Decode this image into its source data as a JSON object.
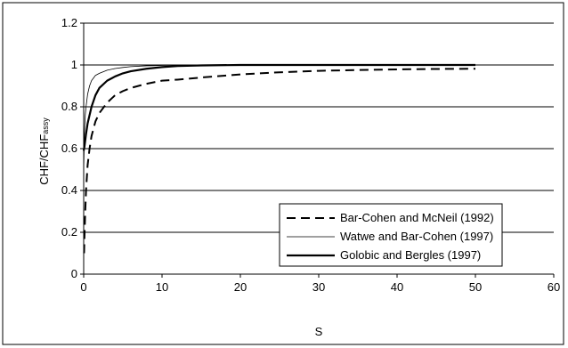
{
  "chart_data": {
    "type": "line",
    "xlabel": "S",
    "ylabel_main": "CHF/CHF",
    "ylabel_sub": "assy",
    "xlim": [
      0,
      60
    ],
    "ylim": [
      0,
      1.2
    ],
    "x_ticks": [
      0,
      10,
      20,
      30,
      40,
      50,
      60
    ],
    "y_ticks": [
      0,
      0.2,
      0.4,
      0.6,
      0.8,
      1,
      1.2
    ],
    "x_tick_labels": [
      "0",
      "10",
      "20",
      "30",
      "40",
      "50",
      "60"
    ],
    "y_tick_labels": [
      "0",
      "0.2",
      "0.4",
      "0.6",
      "0.8",
      "1",
      "1.2"
    ],
    "grid": "horizontal",
    "legend_position": "bottom-right",
    "series": [
      {
        "name": "Bar-Cohen and McNeil (1992)",
        "style": "dashed",
        "x": [
          0.05,
          0.1,
          0.2,
          0.3,
          0.5,
          0.75,
          1,
          1.5,
          2,
          3,
          4,
          5,
          6,
          8,
          10,
          12,
          15,
          20,
          25,
          30,
          35,
          40,
          45,
          50
        ],
        "y": [
          0.1,
          0.18,
          0.3,
          0.4,
          0.52,
          0.6,
          0.66,
          0.73,
          0.77,
          0.82,
          0.855,
          0.875,
          0.89,
          0.91,
          0.925,
          0.93,
          0.94,
          0.955,
          0.965,
          0.972,
          0.976,
          0.979,
          0.981,
          0.982
        ]
      },
      {
        "name": "Watwe and Bar-Cohen (1997)",
        "style": "thin",
        "x": [
          0,
          0.1,
          0.2,
          0.3,
          0.5,
          0.75,
          1,
          1.5,
          2,
          3,
          4,
          5,
          6,
          8,
          10,
          15,
          20,
          30,
          40,
          50
        ],
        "y": [
          0.5,
          0.68,
          0.76,
          0.8,
          0.86,
          0.9,
          0.925,
          0.95,
          0.96,
          0.975,
          0.983,
          0.988,
          0.992,
          0.996,
          0.998,
          1.0,
          1.0,
          1.0,
          1.0,
          1.0
        ]
      },
      {
        "name": "Golobic and Bergles (1997)",
        "style": "thick",
        "x": [
          0,
          0.1,
          0.2,
          0.3,
          0.5,
          0.75,
          1,
          1.5,
          2,
          3,
          4,
          5,
          6,
          8,
          10,
          12,
          15,
          20,
          30,
          40,
          50
        ],
        "y": [
          0.59,
          0.61,
          0.64,
          0.67,
          0.72,
          0.76,
          0.8,
          0.855,
          0.89,
          0.925,
          0.945,
          0.96,
          0.97,
          0.982,
          0.99,
          0.995,
          0.998,
          1.0,
          1.0,
          1.0,
          1.0
        ]
      }
    ]
  }
}
